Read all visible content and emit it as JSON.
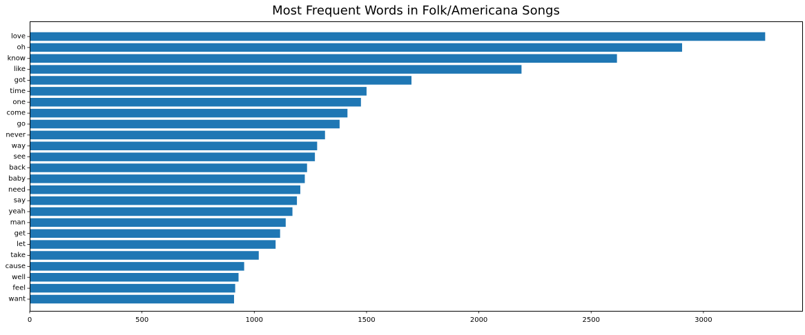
{
  "chart_data": {
    "type": "bar",
    "orientation": "horizontal",
    "title": "Most Frequent Words in Folk/Americana Songs",
    "xlabel": "",
    "ylabel": "",
    "categories": [
      "love",
      "oh",
      "know",
      "like",
      "got",
      "time",
      "one",
      "come",
      "go",
      "never",
      "way",
      "see",
      "back",
      "baby",
      "need",
      "say",
      "yeah",
      "man",
      "get",
      "let",
      "take",
      "cause",
      "well",
      "feel",
      "want"
    ],
    "values": [
      3275,
      2905,
      2615,
      2190,
      1700,
      1500,
      1475,
      1415,
      1380,
      1315,
      1280,
      1270,
      1235,
      1225,
      1205,
      1190,
      1170,
      1140,
      1115,
      1095,
      1020,
      955,
      930,
      915,
      910
    ],
    "xlim": [
      0,
      3440
    ],
    "xticks": [
      0,
      500,
      1000,
      1500,
      2000,
      2500,
      3000
    ],
    "bar_color": "#1f77b4",
    "grid": false
  }
}
